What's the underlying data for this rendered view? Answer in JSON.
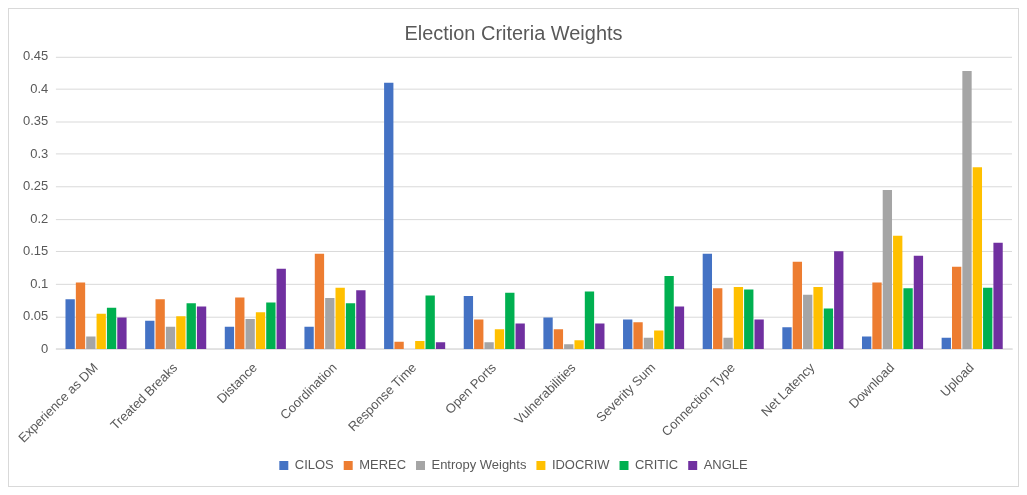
{
  "chart_data": {
    "type": "bar",
    "title": "Election Criteria Weights",
    "categories": [
      "Experience as DM",
      "Treated Breaks",
      "Distance",
      "Coordination",
      "Response Time",
      "Open Ports",
      "Vulnerabilities",
      "Severity Sum",
      "Connection Type",
      "Net Latency",
      "Download",
      "Upload"
    ],
    "series": [
      {
        "name": "CILOS",
        "color": "#4472c4",
        "values": [
          0.077,
          0.044,
          0.035,
          0.035,
          0.41,
          0.082,
          0.049,
          0.046,
          0.147,
          0.034,
          0.02,
          0.018
        ]
      },
      {
        "name": "MEREC",
        "color": "#ed7d31",
        "values": [
          0.103,
          0.077,
          0.08,
          0.147,
          0.012,
          0.046,
          0.031,
          0.042,
          0.094,
          0.135,
          0.103,
          0.127
        ]
      },
      {
        "name": "Entropy Weights",
        "color": "#a5a5a5",
        "values": [
          0.02,
          0.035,
          0.047,
          0.079,
          0,
          0.011,
          0.008,
          0.018,
          0.018,
          0.084,
          0.245,
          0.428
        ]
      },
      {
        "name": "IDOCRIW",
        "color": "#ffc000",
        "values": [
          0.055,
          0.051,
          0.057,
          0.095,
          0.013,
          0.031,
          0.014,
          0.029,
          0.096,
          0.096,
          0.175,
          0.28
        ]
      },
      {
        "name": "CRITIC",
        "color": "#00b050",
        "values": [
          0.064,
          0.071,
          0.072,
          0.071,
          0.083,
          0.087,
          0.089,
          0.113,
          0.092,
          0.063,
          0.094,
          0.095
        ]
      },
      {
        "name": "ANGLE",
        "color": "#7030a0",
        "values": [
          0.049,
          0.066,
          0.124,
          0.091,
          0.011,
          0.04,
          0.04,
          0.066,
          0.046,
          0.151,
          0.144,
          0.164
        ]
      }
    ],
    "ylim": [
      0,
      0.45
    ],
    "yticks": [
      0,
      0.05,
      0.1,
      0.15,
      0.2,
      0.25,
      0.3,
      0.35,
      0.4,
      0.45
    ],
    "grid": "y",
    "legend": "bottom"
  }
}
